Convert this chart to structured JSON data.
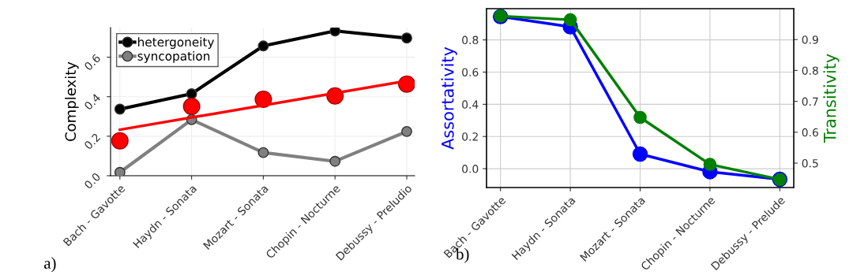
{
  "chart_data": [
    {
      "type": "line",
      "categories": [
        "Bach - Gavotte",
        "Haydn - Sonata",
        "Mozart - Sonata",
        "Chopin - Nocturne",
        "Debussy - Preludio"
      ],
      "ylabel": "Complexity",
      "ylim": [
        0,
        0.75
      ],
      "yticks": [
        {
          "value": 0,
          "label": "0.0"
        },
        0.2,
        0.4,
        0.6
      ],
      "grid": true,
      "legend": "top left",
      "marker": "circle",
      "annotations": [
        "a)"
      ],
      "series": [
        {
          "name": "hetergoneity",
          "color": "#000000",
          "values": [
            0.337,
            0.415,
            0.657,
            0.733,
            0.697
          ]
        },
        {
          "name": "syncopation",
          "color": "#808080",
          "values": [
            0.017,
            0.284,
            0.117,
            0.073,
            0.224
          ]
        },
        {
          "type": "scatter",
          "color": "#ff0000",
          "values": [
            0.177,
            0.351,
            0.387,
            0.404,
            0.464
          ]
        },
        {
          "type": "line",
          "color": "#ff0000",
          "x": [
            "Bach - Gavotte",
            "Debussy - Preludio"
          ],
          "values": [
            0.233,
            0.48
          ],
          "marker": "none"
        }
      ]
    },
    {
      "type": "line",
      "categories": [
        "Bach - Gavotte",
        "Haydn - Sonata",
        "Mozart - Sonata",
        "Chopin - Nocturne",
        "Debussy - Prelude"
      ],
      "ylabel": "Assortativity",
      "y2label": "Transitivity",
      "ylim": [
        -0.117,
        0.994
      ],
      "yticks": [
        {
          "value": 0,
          "label": "0.0"
        },
        0.2,
        0.4,
        0.6,
        0.8
      ],
      "y2lim": [
        0.421,
        1.0
      ],
      "y2ticks": [
        0.5,
        0.6,
        0.7,
        0.8,
        0.9
      ],
      "grid": true,
      "marker": "circle",
      "annotations": [
        "b)"
      ],
      "series": [
        {
          "color": "#0000ff",
          "values": [
            0.945,
            0.881,
            0.091,
            -0.019,
            -0.066
          ]
        },
        {
          "color": "#008000",
          "axis": "y2",
          "values": [
            0.976,
            0.964,
            0.648,
            0.496,
            0.447
          ]
        }
      ]
    }
  ]
}
